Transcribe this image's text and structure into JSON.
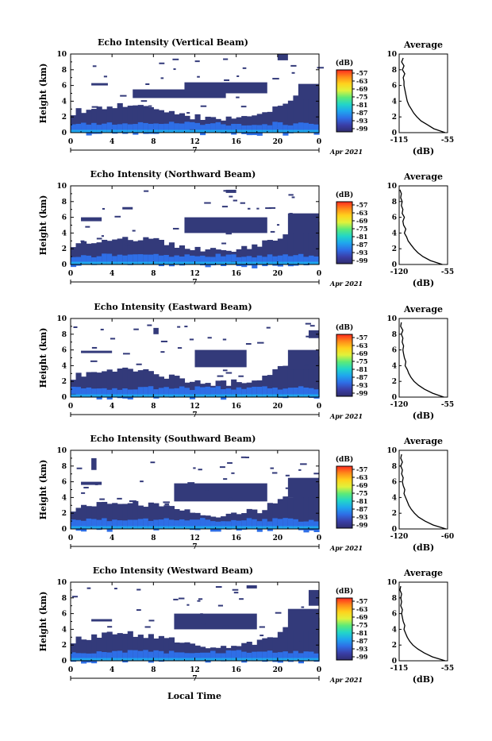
{
  "x_axis_label": "Local Time",
  "colors": {
    "background": "#ffffff",
    "echo_base": "#333a7a",
    "colorbar": [
      "#ff2a1f",
      "#ff8a1a",
      "#ffd21c",
      "#e0f23c",
      "#5cea78",
      "#22d6c8",
      "#1fa6ee",
      "#2e6ee6",
      "#3a3fa8",
      "#2f2c6e"
    ]
  },
  "chart_data": [
    {
      "type": "heatmap",
      "title": "Echo Intensity (Vertical Beam)",
      "ylabel": "Height (km)",
      "ylim": [
        0,
        10
      ],
      "yticks": [
        "0",
        "2",
        "4",
        "6",
        "8",
        "10"
      ],
      "xlim": [
        0,
        24
      ],
      "xticks": [
        "0",
        "4",
        "8",
        "12",
        "16",
        "20",
        "0"
      ],
      "date_label": "Apr 2021",
      "day_marker": "7",
      "colorbar": {
        "unit": "(dB)",
        "labels": [
          "-57",
          "-63",
          "-69",
          "-75",
          "-81",
          "-87",
          "-93",
          "-99"
        ]
      },
      "profile": {
        "title": "Average",
        "xlabel": "(dB)",
        "xticks": [
          "-115",
          "-55"
        ],
        "xlim": [
          -115,
          -55
        ],
        "height": [
          0,
          0.5,
          1,
          1.5,
          2,
          2.5,
          3,
          3.5,
          4,
          4.5,
          5,
          5.5,
          6,
          6.5,
          7,
          7.5,
          8,
          8.5,
          9,
          9.5
        ],
        "db": [
          -58,
          -72,
          -80,
          -88,
          -93,
          -97,
          -100,
          -103,
          -105,
          -106,
          -107,
          -108,
          -109,
          -109,
          -110,
          -108,
          -111,
          -109,
          -112,
          -110
        ]
      }
    },
    {
      "type": "heatmap",
      "title": "Echo Intensity (Northward Beam)",
      "ylabel": "Height (km)",
      "ylim": [
        0,
        10
      ],
      "yticks": [
        "0",
        "2",
        "4",
        "6",
        "8",
        "10"
      ],
      "xlim": [
        0,
        24
      ],
      "xticks": [
        "0",
        "4",
        "8",
        "12",
        "16",
        "20",
        "0"
      ],
      "date_label": "Apr 2021",
      "day_marker": "7",
      "colorbar": {
        "unit": "(dB)",
        "labels": [
          "-57",
          "-63",
          "-69",
          "-75",
          "-81",
          "-87",
          "-93",
          "-99"
        ]
      },
      "profile": {
        "title": "Average",
        "xlabel": "(dB)",
        "xticks": [
          "-120",
          "-55"
        ],
        "xlim": [
          -120,
          -55
        ],
        "height": [
          0,
          0.5,
          1,
          1.5,
          2,
          2.5,
          3,
          3.5,
          4,
          4.5,
          5,
          5.5,
          6,
          6.5,
          7,
          7.5,
          8,
          8.5,
          9,
          9.5
        ],
        "db": [
          -62,
          -78,
          -88,
          -95,
          -100,
          -104,
          -108,
          -110,
          -113,
          -111,
          -114,
          -115,
          -113,
          -116,
          -115,
          -117,
          -116,
          -118,
          -117,
          -119
        ]
      }
    },
    {
      "type": "heatmap",
      "title": "Echo Intensity (Eastward Beam)",
      "ylabel": "Height (km)",
      "ylim": [
        0,
        10
      ],
      "yticks": [
        "0",
        "2",
        "4",
        "6",
        "8",
        "10"
      ],
      "xlim": [
        0,
        24
      ],
      "xticks": [
        "0",
        "4",
        "8",
        "12",
        "16",
        "20",
        "0"
      ],
      "date_label": "Apr 2021",
      "day_marker": "7",
      "colorbar": {
        "unit": "(dB)",
        "labels": [
          "-57",
          "-63",
          "-69",
          "-75",
          "-81",
          "-87",
          "-93",
          "-99"
        ]
      },
      "profile": {
        "title": "Average",
        "xlabel": "(dB)",
        "xticks": [
          "-120",
          "-55"
        ],
        "xlim": [
          -120,
          -55
        ],
        "height": [
          0,
          0.5,
          1,
          1.5,
          2,
          2.5,
          3,
          3.5,
          4,
          4.5,
          5,
          5.5,
          6,
          6.5,
          7,
          7.5,
          8,
          8.5,
          9,
          9.5
        ],
        "db": [
          -60,
          -75,
          -86,
          -94,
          -100,
          -104,
          -107,
          -109,
          -112,
          -111,
          -113,
          -114,
          -115,
          -114,
          -116,
          -115,
          -117,
          -115,
          -118,
          -117
        ]
      }
    },
    {
      "type": "heatmap",
      "title": "Echo Intensity (Southward Beam)",
      "ylabel": "Height (km)",
      "ylim": [
        0,
        10
      ],
      "yticks": [
        "0",
        "2",
        "4",
        "6",
        "8",
        "10"
      ],
      "xlim": [
        0,
        24
      ],
      "xticks": [
        "0",
        "4",
        "8",
        "12",
        "16",
        "20",
        "0"
      ],
      "date_label": "Apr 2021",
      "day_marker": "7",
      "colorbar": {
        "unit": "(dB)",
        "labels": [
          "-57",
          "-63",
          "-69",
          "-75",
          "-81",
          "-87",
          "-93",
          "-99"
        ]
      },
      "profile": {
        "title": "Average",
        "xlabel": "(dB)",
        "xticks": [
          "-120",
          "-60"
        ],
        "xlim": [
          -120,
          -60
        ],
        "height": [
          0,
          0.5,
          1,
          1.5,
          2,
          2.5,
          3,
          3.5,
          4,
          4.5,
          5,
          5.5,
          6,
          6.5,
          7,
          7.5,
          8,
          8.5,
          9,
          9.5
        ],
        "db": [
          -62,
          -78,
          -88,
          -96,
          -101,
          -105,
          -108,
          -110,
          -112,
          -114,
          -113,
          -115,
          -116,
          -115,
          -117,
          -116,
          -118,
          -116,
          -118,
          -117
        ]
      }
    },
    {
      "type": "heatmap",
      "title": "Echo Intensity (Westward Beam)",
      "ylabel": "Height (km)",
      "ylim": [
        0,
        10
      ],
      "yticks": [
        "0",
        "2",
        "4",
        "6",
        "8",
        "10"
      ],
      "xlim": [
        0,
        24
      ],
      "xticks": [
        "0",
        "4",
        "8",
        "12",
        "16",
        "20",
        "0"
      ],
      "date_label": "Apr 2021",
      "day_marker": "7",
      "colorbar": {
        "unit": "(dB)",
        "labels": [
          "-57",
          "-63",
          "-69",
          "-75",
          "-81",
          "-87",
          "-93",
          "-99"
        ]
      },
      "profile": {
        "title": "Average",
        "xlabel": "(dB)",
        "xticks": [
          "-115",
          "-55"
        ],
        "xlim": [
          -115,
          -55
        ],
        "height": [
          0,
          0.5,
          1,
          1.5,
          2,
          2.5,
          3,
          3.5,
          4,
          4.5,
          5,
          5.5,
          6,
          6.5,
          7,
          7.5,
          8,
          8.5,
          9,
          9.5
        ],
        "db": [
          -58,
          -74,
          -84,
          -92,
          -98,
          -102,
          -105,
          -107,
          -109,
          -108,
          -110,
          -111,
          -112,
          -111,
          -113,
          -112,
          -113,
          -112,
          -114,
          -113
        ]
      }
    }
  ]
}
